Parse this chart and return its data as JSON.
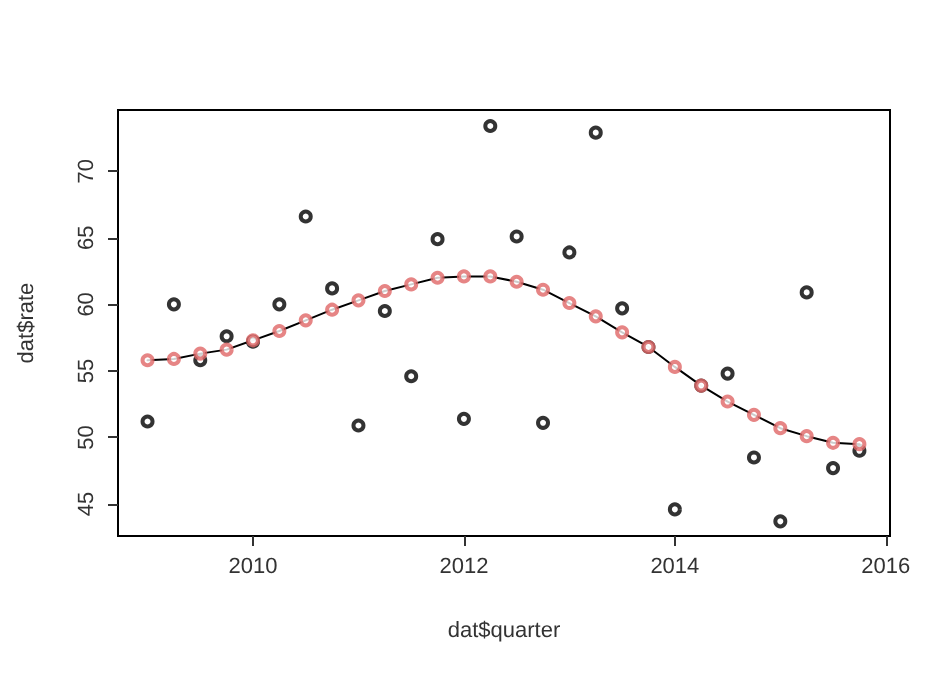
{
  "chart_data": {
    "type": "scatter",
    "xlabel": "dat$quarter",
    "ylabel": "dat$rate",
    "x": [
      2009,
      2009.25,
      2009.5,
      2009.75,
      2010,
      2010.25,
      2010.5,
      2010.75,
      2011,
      2011.25,
      2011.5,
      2011.75,
      2012,
      2012.25,
      2012.5,
      2012.75,
      2013,
      2013.25,
      2013.5,
      2013.75,
      2014,
      2014.25,
      2014.5,
      2014.75,
      2015,
      2015.25,
      2015.5,
      2015.75
    ],
    "series": [
      {
        "color": "#000000",
        "values": [
          51.2,
          60.0,
          55.8,
          57.6,
          57.2,
          60.0,
          66.6,
          61.2,
          50.9,
          59.5,
          54.6,
          64.9,
          51.4,
          73.4,
          65.1,
          51.1,
          63.9,
          72.9,
          59.7,
          56.8,
          44.6,
          53.9,
          54.8,
          48.5,
          43.7,
          60.9,
          47.7,
          49.0
        ]
      },
      {
        "type": "line",
        "color": "#000000",
        "marker": "none",
        "values": [
          55.8,
          55.9,
          56.3,
          56.6,
          57.3,
          58.0,
          58.8,
          59.6,
          60.3,
          61.0,
          61.5,
          62.0,
          62.1,
          62.1,
          61.7,
          61.1,
          60.1,
          59.1,
          57.9,
          56.8,
          55.3,
          53.9,
          52.7,
          51.7,
          50.7,
          50.1,
          49.6,
          49.5
        ]
      },
      {
        "color": "#e06666",
        "values": [
          55.8,
          55.9,
          56.3,
          56.6,
          57.3,
          58.0,
          58.8,
          59.6,
          60.3,
          61.0,
          61.5,
          62.0,
          62.1,
          62.1,
          61.7,
          61.1,
          60.1,
          59.1,
          57.9,
          56.8,
          55.3,
          53.9,
          52.7,
          51.7,
          50.7,
          50.1,
          49.6,
          49.5
        ]
      }
    ],
    "marker": "circle",
    "grid": false,
    "xlim": [
      2008.72,
      2016.04
    ],
    "xticks": [
      2010,
      2012,
      2014,
      2016
    ],
    "ylim": [
      42.6,
      74.6
    ],
    "yticks": [
      45,
      50,
      55,
      60,
      65,
      70
    ]
  }
}
